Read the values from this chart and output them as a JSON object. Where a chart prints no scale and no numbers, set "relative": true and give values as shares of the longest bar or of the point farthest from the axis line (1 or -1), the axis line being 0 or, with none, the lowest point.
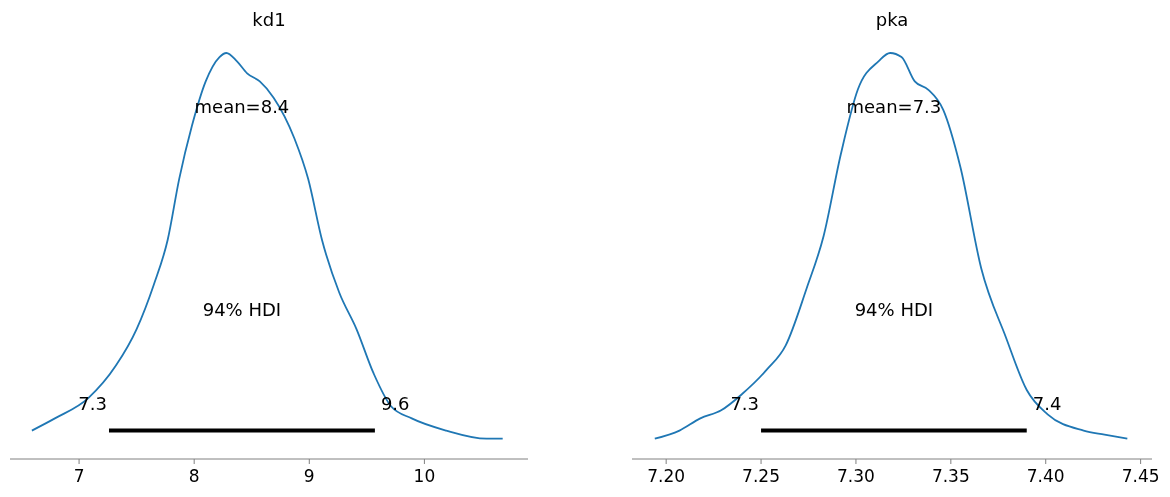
{
  "chart_data": [
    {
      "type": "line",
      "title": "kd1",
      "relative": true,
      "tick_labels": "x",
      "xlim": [
        6.4,
        10.9
      ],
      "xticks": [
        7,
        8,
        9,
        10
      ],
      "series": [
        {
          "color": "#1f77b4",
          "x": [
            6.59,
            6.79,
            7.08,
            7.32,
            7.5,
            7.65,
            7.77,
            7.87,
            7.98,
            8.1,
            8.22,
            8.28,
            8.37,
            8.46,
            8.57,
            8.69,
            8.87,
            8.99,
            9.11,
            9.26,
            9.41,
            9.56,
            9.71,
            9.89,
            10.19,
            10.54,
            10.68
          ],
          "values": [
            0.07,
            0.1,
            0.15,
            0.23,
            0.32,
            0.43,
            0.54,
            0.69,
            0.82,
            0.93,
            0.99,
            1,
            0.98,
            0.95,
            0.93,
            0.89,
            0.79,
            0.69,
            0.54,
            0.41,
            0.32,
            0.21,
            0.13,
            0.1,
            0.07,
            0.05,
            0.05
          ]
        },
        {
          "color": "#000000",
          "x": [
            7.26,
            9.57
          ],
          "values": [
            0.07,
            0.07
          ]
        }
      ],
      "annotations": [
        "7.3",
        "9.6",
        "mean=8.4",
        "94% HDI"
      ]
    },
    {
      "type": "line",
      "title": "pka",
      "relative": true,
      "tick_labels": "x",
      "xlim": [
        7.182,
        7.456
      ],
      "xticks": [
        {
          "value": 7.2,
          "label": "7.20"
        },
        7.25,
        {
          "value": 7.3,
          "label": "7.30"
        },
        7.35,
        {
          "value": 7.4,
          "label": "7.40"
        },
        7.45
      ],
      "series": [
        {
          "color": "#1f77b4",
          "x": [
            7.194,
            7.207,
            7.218,
            7.229,
            7.24,
            7.253,
            7.263,
            7.274,
            7.283,
            7.292,
            7.301,
            7.312,
            7.318,
            7.324,
            7.331,
            7.338,
            7.346,
            7.355,
            7.366,
            7.379,
            7.39,
            7.401,
            7.42,
            7.431,
            7.443
          ],
          "values": [
            0.05,
            0.07,
            0.1,
            0.12,
            0.16,
            0.22,
            0.28,
            0.42,
            0.55,
            0.75,
            0.91,
            0.98,
            1,
            0.99,
            0.93,
            0.91,
            0.86,
            0.72,
            0.47,
            0.3,
            0.17,
            0.11,
            0.07,
            0.06,
            0.05
          ]
        },
        {
          "color": "#000000",
          "x": [
            7.25,
            7.39
          ],
          "values": [
            0.07,
            0.07
          ]
        }
      ],
      "annotations": [
        "7.3",
        "7.4",
        "mean=7.3",
        "94% HDI"
      ]
    }
  ]
}
